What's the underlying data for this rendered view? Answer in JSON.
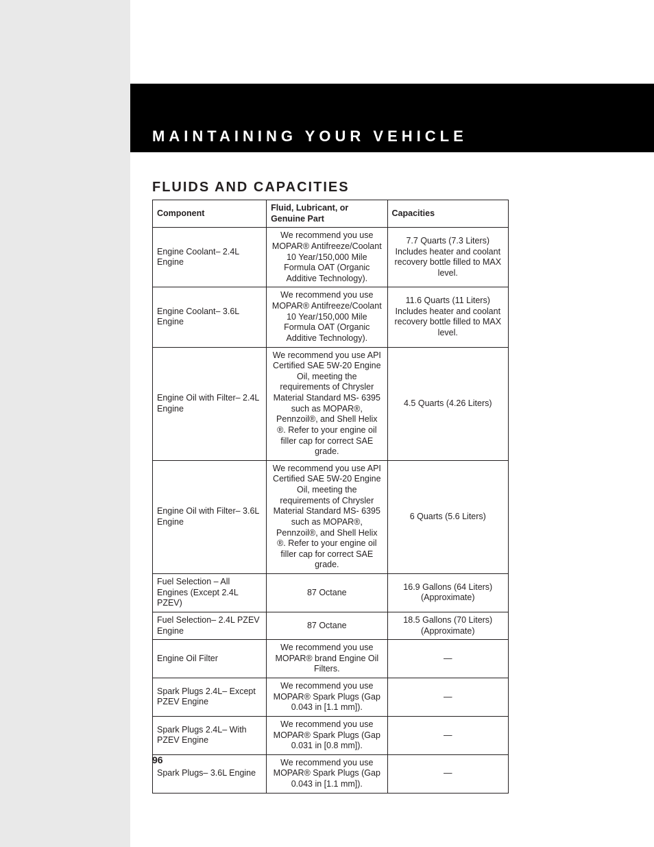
{
  "page": {
    "chapter_title": "MAINTAINING YOUR VEHICLE",
    "section_title": "FLUIDS AND CAPACITIES",
    "page_number": "96",
    "colors": {
      "sidebar": "#e9e9e9",
      "topband_bg": "#000000",
      "topband_text": "#ffffff",
      "text": "#231f20",
      "border": "#231f20",
      "page_bg": "#ffffff"
    },
    "typography": {
      "chapter_fontsize_pt": 16,
      "chapter_letter_spacing": 6,
      "section_fontsize_pt": 15,
      "section_letter_spacing": 2,
      "body_fontsize_pt": 9.5
    }
  },
  "table": {
    "type": "table",
    "columns": [
      {
        "label": "Component",
        "align": "left"
      },
      {
        "label": "Fluid, Lubricant, or Genuine Part",
        "align": "left"
      },
      {
        "label": "Capacities",
        "align": "left"
      }
    ],
    "column_widths_pct": [
      32,
      34,
      34
    ],
    "rows": [
      {
        "component": "Engine Coolant– 2.4L Engine",
        "fluid": "We recommend you use MOPAR® Antifreeze/Coolant 10 Year/150,000 Mile Formula OAT (Organic Additive Technology).",
        "capacity": "7.7 Quarts (7.3 Liters) Includes heater and coolant recovery bottle filled to MAX level.",
        "fluid_align": "center",
        "capacity_align": "center"
      },
      {
        "component": "Engine Coolant– 3.6L Engine",
        "fluid": "We recommend you use MOPAR® Antifreeze/Coolant 10 Year/150,000 Mile Formula OAT (Organic Additive Technology).",
        "capacity": "11.6 Quarts (11 Liters) Includes heater and coolant recovery bottle filled to MAX level.",
        "fluid_align": "center",
        "capacity_align": "center"
      },
      {
        "component": "Engine Oil with Filter– 2.4L Engine",
        "fluid": "We recommend you use API Certified SAE 5W-20 Engine Oil, meeting the requirements of Chrysler Material Standard MS- 6395 such as MOPAR®, Pennzoil®, and Shell Helix ®. Refer to your engine oil filler cap for correct SAE grade.",
        "capacity": "4.5 Quarts (4.26 Liters)",
        "fluid_align": "center",
        "capacity_align": "center"
      },
      {
        "component": "Engine Oil with Filter– 3.6L Engine",
        "fluid": "We recommend you use API Certified SAE 5W-20 Engine Oil, meeting the requirements of Chrysler Material Standard MS- 6395 such as MOPAR®, Pennzoil®, and Shell Helix ®. Refer to your engine oil filler cap for correct SAE grade.",
        "capacity": "6 Quarts (5.6 Liters)",
        "fluid_align": "center",
        "capacity_align": "center"
      },
      {
        "component": "Fuel Selection – All Engines (Except 2.4L PZEV)",
        "fluid": "87 Octane",
        "capacity": "16.9 Gallons (64 Liters) (Approximate)",
        "fluid_align": "center",
        "capacity_align": "center"
      },
      {
        "component": "Fuel Selection– 2.4L PZEV Engine",
        "fluid": "87 Octane",
        "capacity": "18.5 Gallons (70 Liters) (Approximate)",
        "fluid_align": "center",
        "capacity_align": "center"
      },
      {
        "component": "Engine Oil Filter",
        "fluid": "We recommend you use MOPAR® brand Engine Oil Filters.",
        "capacity": "—",
        "fluid_align": "center",
        "capacity_align": "center"
      },
      {
        "component": "Spark Plugs 2.4L– Except PZEV Engine",
        "fluid": "We recommend you use MOPAR® Spark Plugs (Gap 0.043 in [1.1 mm]).",
        "capacity": "—",
        "fluid_align": "center",
        "capacity_align": "center"
      },
      {
        "component": "Spark Plugs 2.4L– With PZEV Engine",
        "fluid": "We recommend you use MOPAR® Spark Plugs (Gap 0.031 in [0.8 mm]).",
        "capacity": "—",
        "fluid_align": "center",
        "capacity_align": "center"
      },
      {
        "component": "Spark Plugs– 3.6L Engine",
        "fluid": "We recommend you use MOPAR® Spark Plugs (Gap 0.043 in [1.1 mm]).",
        "capacity": "—",
        "fluid_align": "center",
        "capacity_align": "center"
      }
    ]
  }
}
